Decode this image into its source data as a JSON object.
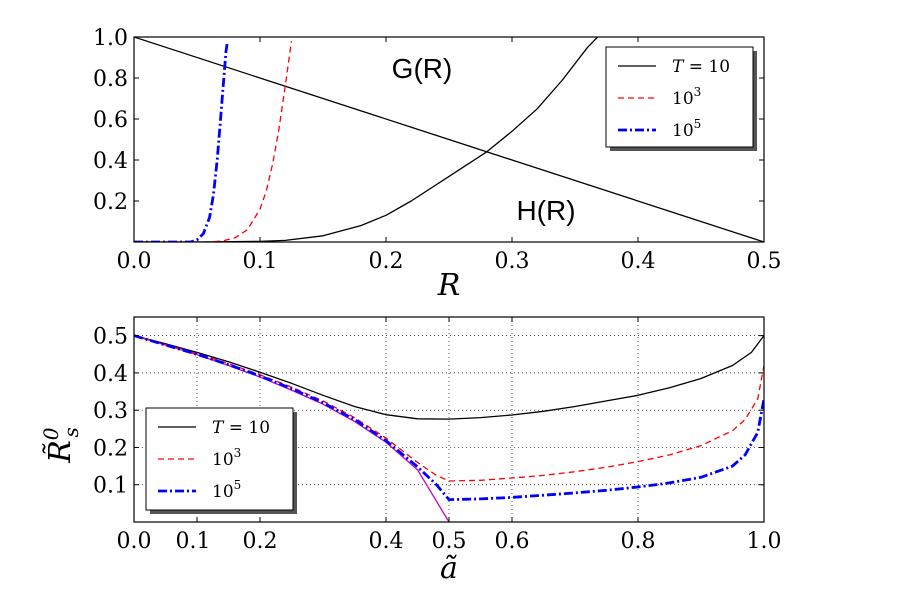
{
  "chart_data": [
    {
      "type": "line",
      "xlabel": "R",
      "ylabel": "",
      "xlim": [
        0,
        0.5
      ],
      "ylim": [
        0,
        1.0
      ],
      "xticks": [
        "0.0",
        "0.1",
        "0.2",
        "0.3",
        "0.4",
        "0.5"
      ],
      "yticks": [
        "0.2",
        "0.4",
        "0.6",
        "0.8",
        "1.0"
      ],
      "grid": false,
      "annotations": [
        "G(R)",
        "H(R)"
      ],
      "legend": {
        "placement": "top-right",
        "entries": [
          {
            "prefix": "T = ",
            "value": "10",
            "exp": "",
            "style": "solid",
            "color": "#000000"
          },
          {
            "prefix": "",
            "value": "10",
            "exp": "3",
            "style": "dashed",
            "color": "#ff0000"
          },
          {
            "prefix": "",
            "value": "10",
            "exp": "5",
            "style": "dashdot",
            "color": "#0000ff"
          }
        ]
      },
      "series": [
        {
          "name": "G(R)",
          "color": "#000000",
          "style": "solid",
          "x": [
            0,
            0.5
          ],
          "y": [
            1.0,
            0.0
          ]
        },
        {
          "name": "H(R), T = 10",
          "color": "#000000",
          "style": "solid",
          "x": [
            0,
            0.05,
            0.1,
            0.12,
            0.15,
            0.18,
            0.2,
            0.22,
            0.25,
            0.28,
            0.3,
            0.32,
            0.34,
            0.36,
            0.368
          ],
          "y": [
            0,
            0.0,
            0.003,
            0.008,
            0.03,
            0.08,
            0.13,
            0.2,
            0.32,
            0.44,
            0.54,
            0.65,
            0.79,
            0.95,
            1.0
          ]
        },
        {
          "name": "H(R), 10^3",
          "color": "#ff0000",
          "style": "dashed",
          "x": [
            0,
            0.06,
            0.07,
            0.08,
            0.09,
            0.1,
            0.105,
            0.11,
            0.115,
            0.12,
            0.125
          ],
          "y": [
            0,
            0.0,
            0.005,
            0.02,
            0.06,
            0.16,
            0.25,
            0.38,
            0.55,
            0.76,
            0.98
          ]
        },
        {
          "name": "H(R), 10^5",
          "color": "#0000ff",
          "style": "dashdot",
          "x": [
            0,
            0.045,
            0.05,
            0.055,
            0.06,
            0.063,
            0.066,
            0.069,
            0.071,
            0.073,
            0.074
          ],
          "y": [
            0,
            0.0,
            0.01,
            0.04,
            0.12,
            0.23,
            0.4,
            0.62,
            0.78,
            0.93,
            0.97
          ]
        }
      ]
    },
    {
      "type": "line",
      "xlabel": "ã",
      "ylabel": "R̃",
      "ylabel_sup": "0",
      "ylabel_sub": "s",
      "xlim": [
        0,
        1.0
      ],
      "ylim": [
        0,
        0.55
      ],
      "xticks": [
        "0.0",
        "0.1",
        "0.2",
        "0.4",
        "0.5",
        "0.6",
        "0.8",
        "1.0"
      ],
      "xtick_values": [
        0,
        0.1,
        0.2,
        0.4,
        0.5,
        0.6,
        0.8,
        1.0
      ],
      "yticks": [
        "0.1",
        "0.2",
        "0.3",
        "0.4",
        "0.5"
      ],
      "grid": true,
      "legend": {
        "placement": "lower-left",
        "entries": [
          {
            "prefix": "T = ",
            "value": "10",
            "exp": "",
            "style": "solid",
            "color": "#000000"
          },
          {
            "prefix": "",
            "value": "10",
            "exp": "3",
            "style": "dashed",
            "color": "#ff0000"
          },
          {
            "prefix": "",
            "value": "10",
            "exp": "5",
            "style": "dashdot",
            "color": "#0000ff"
          }
        ]
      },
      "series": [
        {
          "name": "limit",
          "color": "#cc00cc",
          "style": "solid",
          "x": [
            0,
            0.05,
            0.1,
            0.15,
            0.2,
            0.25,
            0.3,
            0.35,
            0.4,
            0.45,
            0.5
          ],
          "y": [
            0.5,
            0.475,
            0.449,
            0.42,
            0.389,
            0.354,
            0.316,
            0.27,
            0.214,
            0.14,
            0.0
          ]
        },
        {
          "name": "T = 10",
          "color": "#000000",
          "style": "solid",
          "x": [
            0,
            0.05,
            0.1,
            0.15,
            0.2,
            0.25,
            0.3,
            0.35,
            0.4,
            0.45,
            0.5,
            0.55,
            0.6,
            0.65,
            0.7,
            0.75,
            0.8,
            0.85,
            0.9,
            0.95,
            0.98,
            1.0
          ],
          "y": [
            0.5,
            0.478,
            0.455,
            0.43,
            0.402,
            0.372,
            0.34,
            0.31,
            0.288,
            0.277,
            0.276,
            0.28,
            0.287,
            0.297,
            0.31,
            0.325,
            0.34,
            0.36,
            0.385,
            0.42,
            0.455,
            0.5
          ]
        },
        {
          "name": "10^3",
          "color": "#ff0000",
          "style": "dashed",
          "x": [
            0,
            0.05,
            0.1,
            0.15,
            0.2,
            0.25,
            0.3,
            0.35,
            0.4,
            0.45,
            0.48,
            0.5,
            0.55,
            0.6,
            0.65,
            0.7,
            0.75,
            0.8,
            0.85,
            0.9,
            0.95,
            0.97,
            0.99,
            1.0
          ],
          "y": [
            0.5,
            0.476,
            0.452,
            0.425,
            0.395,
            0.362,
            0.325,
            0.28,
            0.225,
            0.16,
            0.125,
            0.11,
            0.112,
            0.118,
            0.125,
            0.135,
            0.147,
            0.162,
            0.18,
            0.205,
            0.245,
            0.275,
            0.33,
            0.42
          ]
        },
        {
          "name": "10^5",
          "color": "#0000ff",
          "style": "dashdot",
          "x": [
            0,
            0.05,
            0.1,
            0.15,
            0.2,
            0.25,
            0.3,
            0.35,
            0.4,
            0.45,
            0.48,
            0.5,
            0.55,
            0.6,
            0.65,
            0.7,
            0.75,
            0.8,
            0.85,
            0.9,
            0.95,
            0.97,
            0.99,
            1.0
          ],
          "y": [
            0.5,
            0.475,
            0.45,
            0.422,
            0.392,
            0.358,
            0.32,
            0.275,
            0.218,
            0.148,
            0.1,
            0.06,
            0.062,
            0.066,
            0.072,
            0.078,
            0.085,
            0.094,
            0.105,
            0.12,
            0.15,
            0.18,
            0.24,
            0.33
          ]
        }
      ]
    }
  ]
}
